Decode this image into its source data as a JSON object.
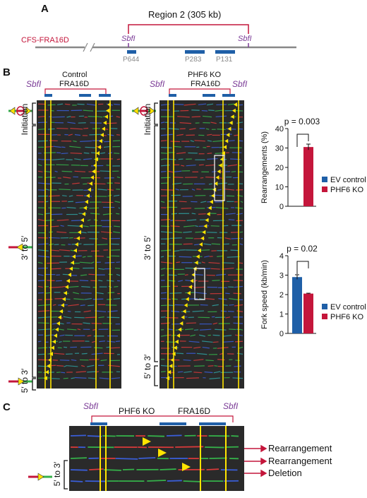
{
  "colors": {
    "blue": "#1f5fa7",
    "red": "#c4163b",
    "purple": "#7a3a96",
    "yellow": "#ffe400",
    "panel_bg": "#2a2a2a"
  },
  "panel_a": {
    "letter": "A",
    "region_label": "Region 2 (305 kb)",
    "cfs_label": "CFS-FRA16D",
    "sbf_left": "SbfI",
    "sbf_right": "SbfI",
    "probes": [
      "P644",
      "P283",
      "P131"
    ]
  },
  "panel_b": {
    "letter": "B",
    "control": {
      "sbf_left": "SbfI",
      "title_line1": "Control",
      "title_line2": "FRA16D"
    },
    "ko": {
      "sbf_left": "SbfI",
      "sbf_right": "SbfI",
      "title_line1": "PHF6 KO",
      "title_line2": "FRA16D"
    },
    "side_labels": {
      "initiation": "Initiation",
      "three_to_five": "3′ to 5′",
      "five_to_three": "5′ to 3′"
    }
  },
  "panel_c": {
    "letter": "C",
    "sbf_left": "SbfI",
    "sbf_right": "SbfI",
    "title_left": "PHF6 KO",
    "title_right": "FRA16D",
    "side_label": "5′ to 3′",
    "annotations": [
      "Rearrangement",
      "Rearrangement",
      "Deletion"
    ]
  },
  "chart_data": [
    {
      "type": "bar",
      "categories": [
        "EV control",
        "PHF6 KO"
      ],
      "values": [
        0,
        30.5
      ],
      "errors": [
        0,
        1.5
      ],
      "ylabel": "Rearrangements (%)",
      "ylim": [
        0,
        40
      ],
      "yticks": [
        0,
        10,
        20,
        30,
        40
      ],
      "annotation": "p = 0.003",
      "legend": [
        "EV control",
        "PHF6 KO"
      ]
    },
    {
      "type": "bar",
      "categories": [
        "EV control",
        "PHF6 KO"
      ],
      "values": [
        2.9,
        2.05
      ],
      "errors": [
        0.12,
        0.02
      ],
      "ylabel": "Fork speed (kb/min)",
      "ylim": [
        0,
        4
      ],
      "yticks": [
        0,
        1,
        2,
        3,
        4
      ],
      "annotation": "p = 0.02",
      "legend": [
        "EV control",
        "PHF6 KO"
      ]
    }
  ]
}
